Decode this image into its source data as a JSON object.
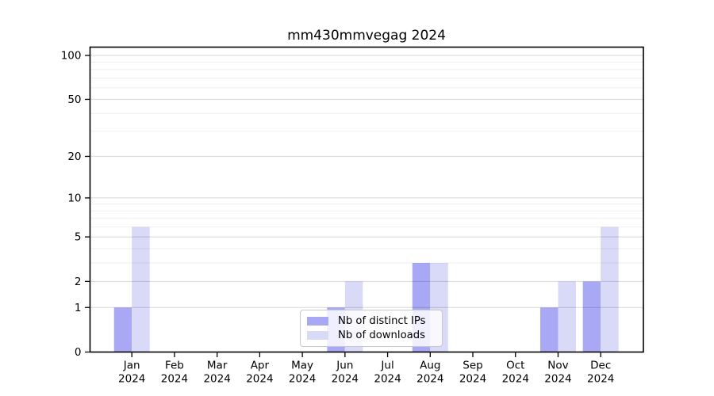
{
  "chart_data": {
    "type": "bar",
    "title": "mm430mmvegag 2024",
    "scale": "log1p",
    "categories": [
      "Jan",
      "Feb",
      "Mar",
      "Apr",
      "May",
      "Jun",
      "Jul",
      "Aug",
      "Sep",
      "Oct",
      "Nov",
      "Dec"
    ],
    "category_year": "2024",
    "series": [
      {
        "name": "Nb of distinct IPs",
        "color": "#a8a8f5",
        "values": [
          1,
          0,
          0,
          0,
          0,
          1,
          0,
          3,
          0,
          0,
          1,
          2
        ]
      },
      {
        "name": "Nb of downloads",
        "color": "#d9d9f8",
        "values": [
          6,
          0,
          0,
          0,
          0,
          2,
          0,
          3,
          0,
          0,
          2,
          6
        ]
      }
    ],
    "y_axis": {
      "major_ticks": [
        0,
        1,
        2,
        5,
        10,
        20,
        50,
        100
      ],
      "minor_gridlines": [
        3,
        4,
        6,
        7,
        8,
        9,
        30,
        40,
        60,
        70,
        80,
        90
      ],
      "min": 0,
      "max": 100
    },
    "xlabel": "",
    "ylabel": "",
    "grid": true,
    "legend_position": "bottom-center"
  }
}
